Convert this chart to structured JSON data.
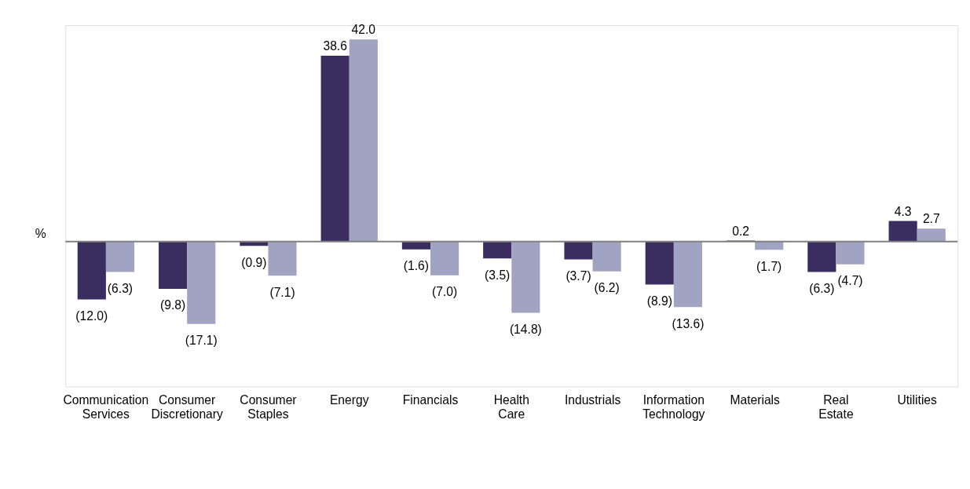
{
  "chart_data": {
    "type": "bar",
    "ylabel": "%",
    "categories": [
      "Communication Services",
      "Consumer Discretionary",
      "Consumer Staples",
      "Energy",
      "Financials",
      "Health Care",
      "Industrials",
      "Information Technology",
      "Materials",
      "Real Estate",
      "Utilities"
    ],
    "series": [
      {
        "color": "#3a2d5f",
        "values": [
          -12.0,
          -9.8,
          -0.9,
          38.6,
          -1.6,
          -3.5,
          -3.7,
          -8.9,
          0.2,
          -6.3,
          4.3
        ],
        "value_labels": [
          "(12.0)",
          "(9.8)",
          "(0.9)",
          "38.6",
          "(1.6)",
          "(3.5)",
          "(3.7)",
          "(8.9)",
          "0.2",
          "(6.3)",
          "4.3"
        ]
      },
      {
        "color": "#a0a3c1",
        "values": [
          -6.3,
          -17.1,
          -7.1,
          42.0,
          -7.0,
          -14.8,
          -6.2,
          -13.6,
          -1.7,
          -4.7,
          2.7
        ],
        "value_labels": [
          "(6.3)",
          "(17.1)",
          "(7.1)",
          "42.0",
          "(7.0)",
          "(14.8)",
          "(6.2)",
          "(13.6)",
          "(1.7)",
          "(4.7)",
          "2.7"
        ]
      }
    ],
    "legend": false,
    "grid": false
  }
}
